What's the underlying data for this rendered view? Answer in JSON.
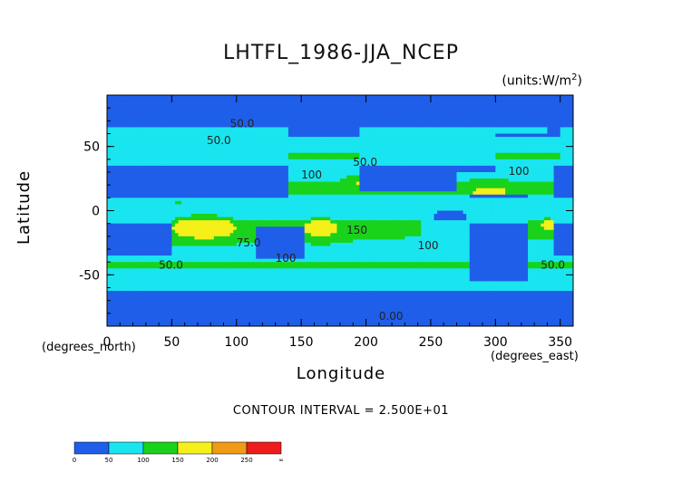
{
  "chart_data": {
    "type": "heatmap",
    "title": "LHTFL_1986-JJA_NCEP",
    "units": "(units:W/m^2)",
    "xlabel": "Longitude",
    "ylabel": "Latitude",
    "x_unit_label": "(degrees_east)",
    "y_unit_label": "(degrees_north)",
    "xlim": [
      0,
      360
    ],
    "ylim": [
      -90,
      90
    ],
    "x_ticks": [
      0,
      50,
      100,
      150,
      200,
      250,
      300,
      350
    ],
    "y_ticks": [
      -50,
      0,
      50
    ],
    "contour_interval_text": "CONTOUR INTERVAL = 2.500E+01",
    "contour_labels": [
      "50.0",
      "50.0",
      "100",
      "50.0",
      "100",
      "150",
      "100",
      "75.0",
      "100",
      "50.0",
      "50.0",
      "0.00"
    ],
    "colorbar": {
      "ticks": [
        "0",
        "50",
        "100",
        "150",
        "200",
        "250",
        "∞"
      ],
      "bins": [
        {
          "min": 0,
          "max": 50,
          "color": "#1f5ee8"
        },
        {
          "min": 50,
          "max": 100,
          "color": "#19e5f0"
        },
        {
          "min": 100,
          "max": 150,
          "color": "#19d21c"
        },
        {
          "min": 150,
          "max": 200,
          "color": "#f5ef1a"
        },
        {
          "min": 200,
          "max": 250,
          "color": "#f09a16"
        },
        {
          "min": 250,
          "max": null,
          "color": "#ee1c1c"
        }
      ]
    }
  }
}
